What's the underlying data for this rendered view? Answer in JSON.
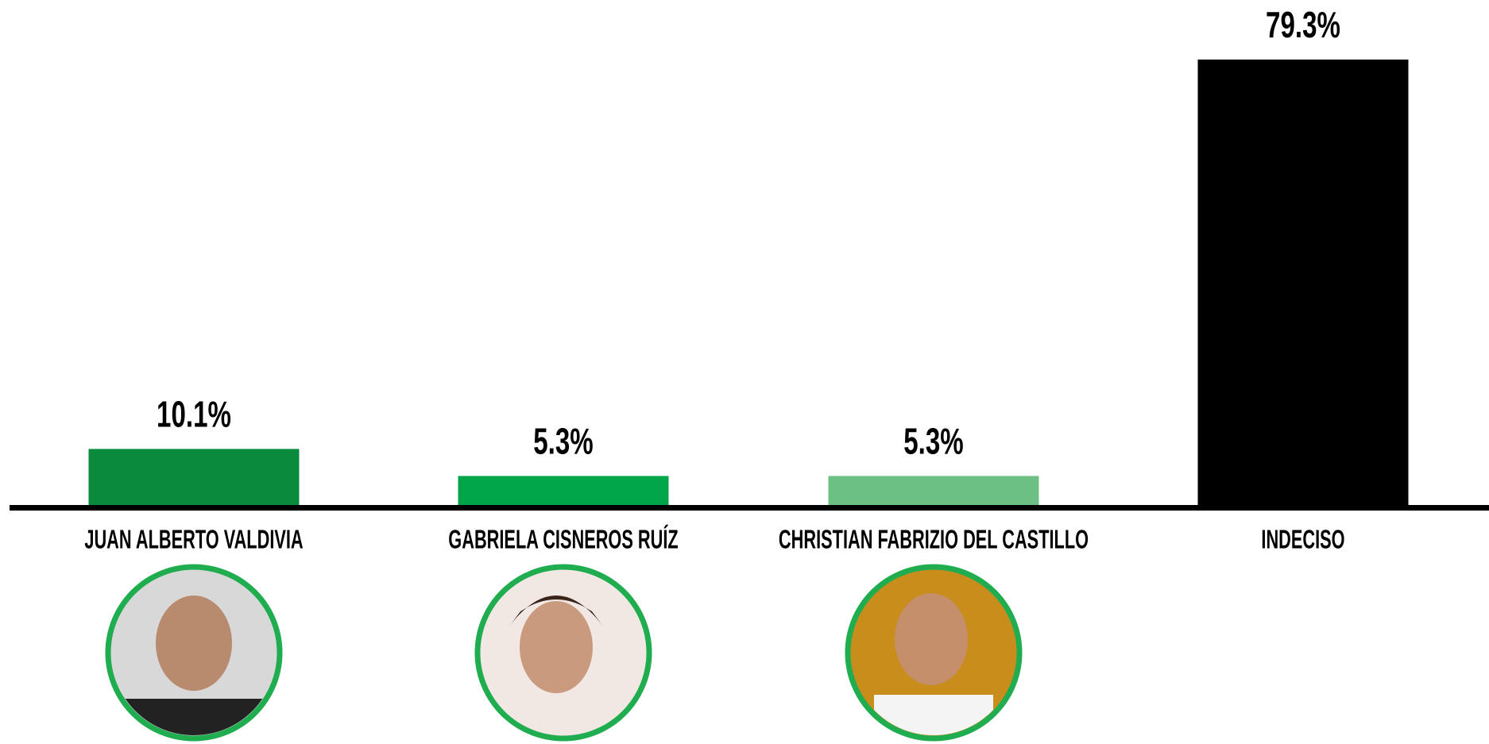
{
  "chart_data": {
    "type": "bar",
    "categories": [
      "JUAN ALBERTO VALDIVIA",
      "GABRIELA CISNEROS RUÍZ",
      "CHRISTIAN FABRIZIO DEL CASTILLO",
      "INDECISO"
    ],
    "values": [
      10.1,
      5.3,
      5.3,
      79.3
    ],
    "value_labels": [
      "10.1%",
      "5.3%",
      "5.3%",
      "79.3%"
    ],
    "colors": [
      "#0a8a3c",
      "#00a54a",
      "#6cc083",
      "#000000"
    ]
  }
}
